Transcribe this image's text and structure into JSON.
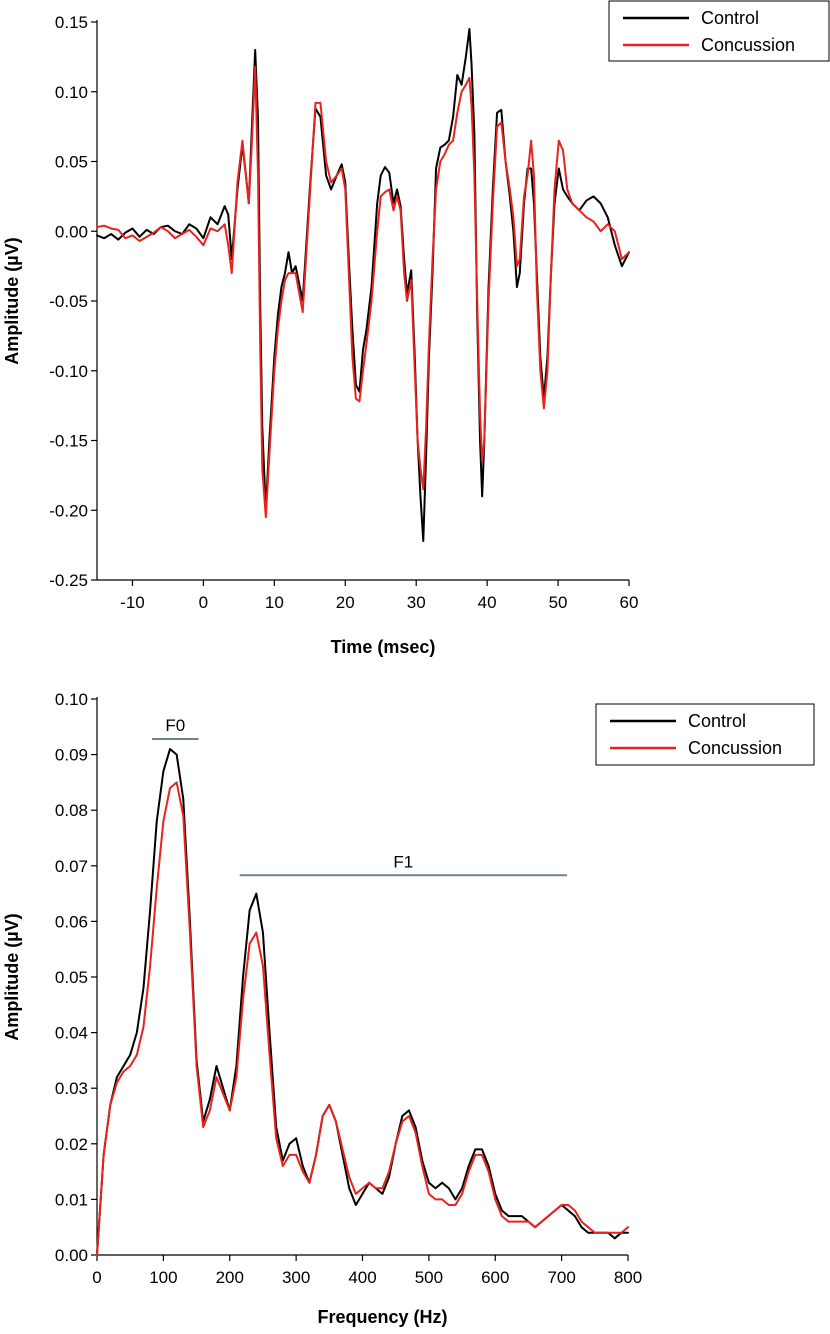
{
  "chart_data": [
    {
      "type": "line",
      "id": "time",
      "title": "",
      "xlabel": "Time (msec)",
      "ylabel": "Amplitude (µV)",
      "xlim": [
        -15,
        60
      ],
      "ylim": [
        -0.25,
        0.15
      ],
      "xticks": [
        -10,
        0,
        10,
        20,
        30,
        40,
        50,
        60
      ],
      "xtick_labels": [
        "-10",
        "0",
        "10",
        "20",
        "30",
        "40",
        "50",
        "60"
      ],
      "yticks": [
        0.15,
        0.1,
        0.05,
        0.0,
        -0.05,
        -0.1,
        -0.15,
        -0.2,
        -0.25
      ],
      "ytick_labels": [
        "0.15",
        "0.10",
        "0.05",
        "0.00",
        "-0.05",
        "-0.10",
        "-0.15",
        "-0.20",
        "-0.25"
      ],
      "legend": {
        "position": "top-right",
        "entries": [
          "Control",
          "Concussion"
        ]
      },
      "series": [
        {
          "name": "Control",
          "color": "#000000",
          "x": [
            -15,
            -14,
            -13,
            -12,
            -11,
            -10,
            -9,
            -8,
            -7,
            -6,
            -5,
            -4,
            -3,
            -2,
            -1,
            0,
            1,
            2,
            3,
            3.5,
            4,
            4.8,
            5.5,
            6,
            6.4,
            6.8,
            7.3,
            7.7,
            8,
            8.3,
            8.8,
            9.3,
            10,
            10.5,
            11,
            11.5,
            12,
            12.5,
            13,
            14,
            15,
            15.8,
            16.5,
            17.3,
            18,
            18.8,
            19.5,
            20,
            20.5,
            21,
            21.5,
            22,
            22.5,
            23,
            23.7,
            24.5,
            25,
            25.6,
            26.2,
            26.8,
            27.3,
            27.8,
            28.3,
            28.7,
            29.3,
            29.8,
            30.2,
            30.6,
            31,
            31.4,
            31.8,
            32.3,
            32.8,
            33.4,
            34,
            34.6,
            35.2,
            35.8,
            36.4,
            37,
            37.5,
            37.8,
            38.2,
            38.6,
            39,
            39.3,
            39.6,
            40.2,
            40.8,
            41.4,
            42,
            42.6,
            43.2,
            43.7,
            44.2,
            44.6,
            45.2,
            45.7,
            46.2,
            46.6,
            47,
            47.5,
            48,
            48.5,
            49,
            49.5,
            50.1,
            50.7,
            51.3,
            52,
            53,
            54,
            55,
            56,
            57,
            58,
            59,
            60
          ],
          "y": [
            -0.003,
            -0.005,
            -0.002,
            -0.006,
            -0.001,
            0.002,
            -0.004,
            0.001,
            -0.002,
            0.003,
            0.004,
            0.0,
            -0.002,
            0.005,
            0.002,
            -0.005,
            0.01,
            0.005,
            0.018,
            0.012,
            -0.02,
            0.03,
            0.062,
            0.04,
            0.02,
            0.07,
            0.13,
            0.08,
            -0.05,
            -0.14,
            -0.2,
            -0.15,
            -0.09,
            -0.06,
            -0.04,
            -0.03,
            -0.015,
            -0.03,
            -0.025,
            -0.05,
            0.03,
            0.088,
            0.082,
            0.04,
            0.03,
            0.04,
            0.048,
            0.035,
            -0.02,
            -0.07,
            -0.11,
            -0.115,
            -0.085,
            -0.07,
            -0.04,
            0.02,
            0.04,
            0.046,
            0.042,
            0.02,
            0.03,
            0.018,
            -0.02,
            -0.045,
            -0.028,
            -0.09,
            -0.15,
            -0.19,
            -0.222,
            -0.16,
            -0.09,
            -0.03,
            0.045,
            0.06,
            0.062,
            0.065,
            0.082,
            0.112,
            0.105,
            0.125,
            0.145,
            0.12,
            0.07,
            -0.06,
            -0.15,
            -0.19,
            -0.15,
            -0.04,
            0.03,
            0.085,
            0.087,
            0.05,
            0.025,
            0.0,
            -0.04,
            -0.03,
            0.02,
            0.045,
            0.045,
            0.02,
            -0.03,
            -0.09,
            -0.12,
            -0.09,
            -0.03,
            0.02,
            0.045,
            0.03,
            0.025,
            0.02,
            0.015,
            0.022,
            0.025,
            0.02,
            0.01,
            -0.01,
            -0.025,
            -0.015
          ]
        },
        {
          "name": "Concussion",
          "color": "#e8231e",
          "x": [
            -15,
            -14,
            -13,
            -12,
            -11,
            -10,
            -9,
            -8,
            -7,
            -6,
            -5,
            -4,
            -3,
            -2,
            -1,
            0,
            1,
            2,
            3,
            3.5,
            4,
            4.8,
            5.5,
            6,
            6.4,
            6.8,
            7.3,
            7.7,
            8,
            8.3,
            8.8,
            9.3,
            10,
            10.5,
            11,
            11.5,
            12,
            12.5,
            13,
            14,
            15,
            15.8,
            16.5,
            17.3,
            18,
            18.8,
            19.5,
            20,
            20.5,
            21,
            21.5,
            22,
            22.5,
            23,
            23.7,
            24.5,
            25,
            25.6,
            26.2,
            26.8,
            27.3,
            27.8,
            28.3,
            28.7,
            29.3,
            29.8,
            30.2,
            30.6,
            31,
            31.4,
            31.8,
            32.3,
            32.8,
            33.4,
            34,
            34.6,
            35.2,
            35.8,
            36.4,
            37,
            37.5,
            37.8,
            38.2,
            38.6,
            39,
            39.3,
            39.6,
            40.2,
            40.8,
            41.4,
            42,
            42.6,
            43.2,
            43.7,
            44.2,
            44.6,
            45.2,
            45.7,
            46.2,
            46.6,
            47,
            47.5,
            48,
            48.5,
            49,
            49.5,
            50.1,
            50.7,
            51.3,
            52,
            53,
            54,
            55,
            56,
            57,
            58,
            59,
            60
          ],
          "y": [
            0.003,
            0.004,
            0.002,
            0.001,
            -0.005,
            -0.003,
            -0.007,
            -0.004,
            -0.001,
            0.003,
            0.0,
            -0.005,
            -0.002,
            0.001,
            -0.004,
            -0.01,
            0.002,
            0.0,
            0.005,
            -0.01,
            -0.03,
            0.035,
            0.065,
            0.04,
            0.02,
            0.06,
            0.118,
            0.04,
            -0.08,
            -0.17,
            -0.205,
            -0.16,
            -0.1,
            -0.07,
            -0.05,
            -0.035,
            -0.03,
            -0.03,
            -0.03,
            -0.058,
            0.025,
            0.092,
            0.092,
            0.05,
            0.035,
            0.04,
            0.045,
            0.03,
            -0.03,
            -0.09,
            -0.12,
            -0.122,
            -0.1,
            -0.08,
            -0.05,
            0.0,
            0.025,
            0.028,
            0.03,
            0.015,
            0.025,
            0.015,
            -0.03,
            -0.05,
            -0.035,
            -0.1,
            -0.15,
            -0.17,
            -0.185,
            -0.14,
            -0.08,
            -0.02,
            0.03,
            0.05,
            0.055,
            0.062,
            0.065,
            0.085,
            0.1,
            0.105,
            0.11,
            0.09,
            0.04,
            -0.05,
            -0.13,
            -0.165,
            -0.15,
            -0.05,
            0.02,
            0.075,
            0.078,
            0.05,
            0.03,
            0.01,
            -0.025,
            -0.02,
            0.025,
            0.04,
            0.065,
            0.04,
            -0.04,
            -0.1,
            -0.127,
            -0.1,
            -0.03,
            0.03,
            0.065,
            0.058,
            0.03,
            0.02,
            0.015,
            0.01,
            0.007,
            0.0,
            0.005,
            0.0,
            -0.02,
            -0.015
          ]
        }
      ]
    },
    {
      "type": "line",
      "id": "frequency",
      "title": "",
      "xlabel": "Frequency (Hz)",
      "ylabel": "Amplitude (µV)",
      "xlim": [
        0,
        800
      ],
      "ylim": [
        0.0,
        0.1
      ],
      "xticks": [
        0,
        100,
        200,
        300,
        400,
        500,
        600,
        700,
        800
      ],
      "xtick_labels": [
        "0",
        "100",
        "200",
        "300",
        "400",
        "500",
        "600",
        "700",
        "800"
      ],
      "yticks": [
        0.1,
        0.09,
        0.08,
        0.07,
        0.06,
        0.05,
        0.04,
        0.03,
        0.02,
        0.01,
        0.0
      ],
      "ytick_labels": [
        "0.10",
        "0.09",
        "0.08",
        "0.07",
        "0.06",
        "0.05",
        "0.04",
        "0.03",
        "0.02",
        "0.01",
        "0.00"
      ],
      "legend": {
        "position": "top-right",
        "entries": [
          "Control",
          "Concussion"
        ]
      },
      "annotations": [
        {
          "label": "F0",
          "x_start": 83,
          "x_end": 153,
          "y": 0.0928
        },
        {
          "label": "F1",
          "x_start": 215,
          "x_end": 708,
          "y": 0.0683
        }
      ],
      "series": [
        {
          "name": "Control",
          "color": "#000000",
          "x": [
            0,
            10,
            20,
            30,
            40,
            50,
            60,
            70,
            80,
            90,
            100,
            110,
            120,
            130,
            140,
            150,
            160,
            170,
            180,
            190,
            200,
            210,
            220,
            230,
            240,
            250,
            260,
            270,
            280,
            290,
            300,
            310,
            320,
            330,
            340,
            350,
            360,
            370,
            380,
            390,
            400,
            410,
            420,
            430,
            440,
            450,
            460,
            470,
            480,
            490,
            500,
            510,
            520,
            530,
            540,
            550,
            560,
            570,
            580,
            590,
            600,
            610,
            620,
            630,
            640,
            650,
            660,
            670,
            680,
            690,
            700,
            710,
            720,
            730,
            740,
            750,
            760,
            770,
            780,
            790,
            800
          ],
          "y": [
            0.0,
            0.018,
            0.027,
            0.032,
            0.034,
            0.036,
            0.04,
            0.048,
            0.062,
            0.078,
            0.087,
            0.091,
            0.09,
            0.082,
            0.06,
            0.035,
            0.024,
            0.028,
            0.034,
            0.03,
            0.026,
            0.034,
            0.05,
            0.062,
            0.065,
            0.058,
            0.04,
            0.023,
            0.017,
            0.02,
            0.021,
            0.016,
            0.013,
            0.018,
            0.025,
            0.027,
            0.024,
            0.018,
            0.012,
            0.009,
            0.011,
            0.013,
            0.012,
            0.011,
            0.014,
            0.02,
            0.025,
            0.026,
            0.023,
            0.017,
            0.013,
            0.012,
            0.013,
            0.012,
            0.01,
            0.012,
            0.016,
            0.019,
            0.019,
            0.016,
            0.011,
            0.008,
            0.007,
            0.007,
            0.007,
            0.006,
            0.005,
            0.006,
            0.007,
            0.008,
            0.009,
            0.008,
            0.007,
            0.005,
            0.004,
            0.004,
            0.004,
            0.004,
            0.003,
            0.004,
            0.004
          ]
        },
        {
          "name": "Concussion",
          "color": "#e8231e",
          "x": [
            0,
            10,
            20,
            30,
            40,
            50,
            60,
            70,
            80,
            90,
            100,
            110,
            120,
            130,
            140,
            150,
            160,
            170,
            180,
            190,
            200,
            210,
            220,
            230,
            240,
            250,
            260,
            270,
            280,
            290,
            300,
            310,
            320,
            330,
            340,
            350,
            360,
            370,
            380,
            390,
            400,
            410,
            420,
            430,
            440,
            450,
            460,
            470,
            480,
            490,
            500,
            510,
            520,
            530,
            540,
            550,
            560,
            570,
            580,
            590,
            600,
            610,
            620,
            630,
            640,
            650,
            660,
            670,
            680,
            690,
            700,
            710,
            720,
            730,
            740,
            750,
            760,
            770,
            780,
            790,
            800
          ],
          "y": [
            0.0,
            0.018,
            0.027,
            0.031,
            0.033,
            0.034,
            0.036,
            0.041,
            0.052,
            0.066,
            0.078,
            0.084,
            0.085,
            0.079,
            0.058,
            0.034,
            0.023,
            0.026,
            0.032,
            0.029,
            0.026,
            0.032,
            0.046,
            0.056,
            0.058,
            0.052,
            0.036,
            0.021,
            0.016,
            0.018,
            0.018,
            0.015,
            0.013,
            0.018,
            0.025,
            0.027,
            0.024,
            0.019,
            0.014,
            0.011,
            0.012,
            0.013,
            0.012,
            0.012,
            0.015,
            0.02,
            0.024,
            0.025,
            0.022,
            0.016,
            0.011,
            0.01,
            0.01,
            0.009,
            0.009,
            0.011,
            0.015,
            0.018,
            0.018,
            0.015,
            0.01,
            0.007,
            0.006,
            0.006,
            0.006,
            0.006,
            0.005,
            0.006,
            0.007,
            0.008,
            0.009,
            0.009,
            0.008,
            0.006,
            0.005,
            0.004,
            0.004,
            0.004,
            0.004,
            0.004,
            0.005
          ]
        }
      ]
    }
  ]
}
